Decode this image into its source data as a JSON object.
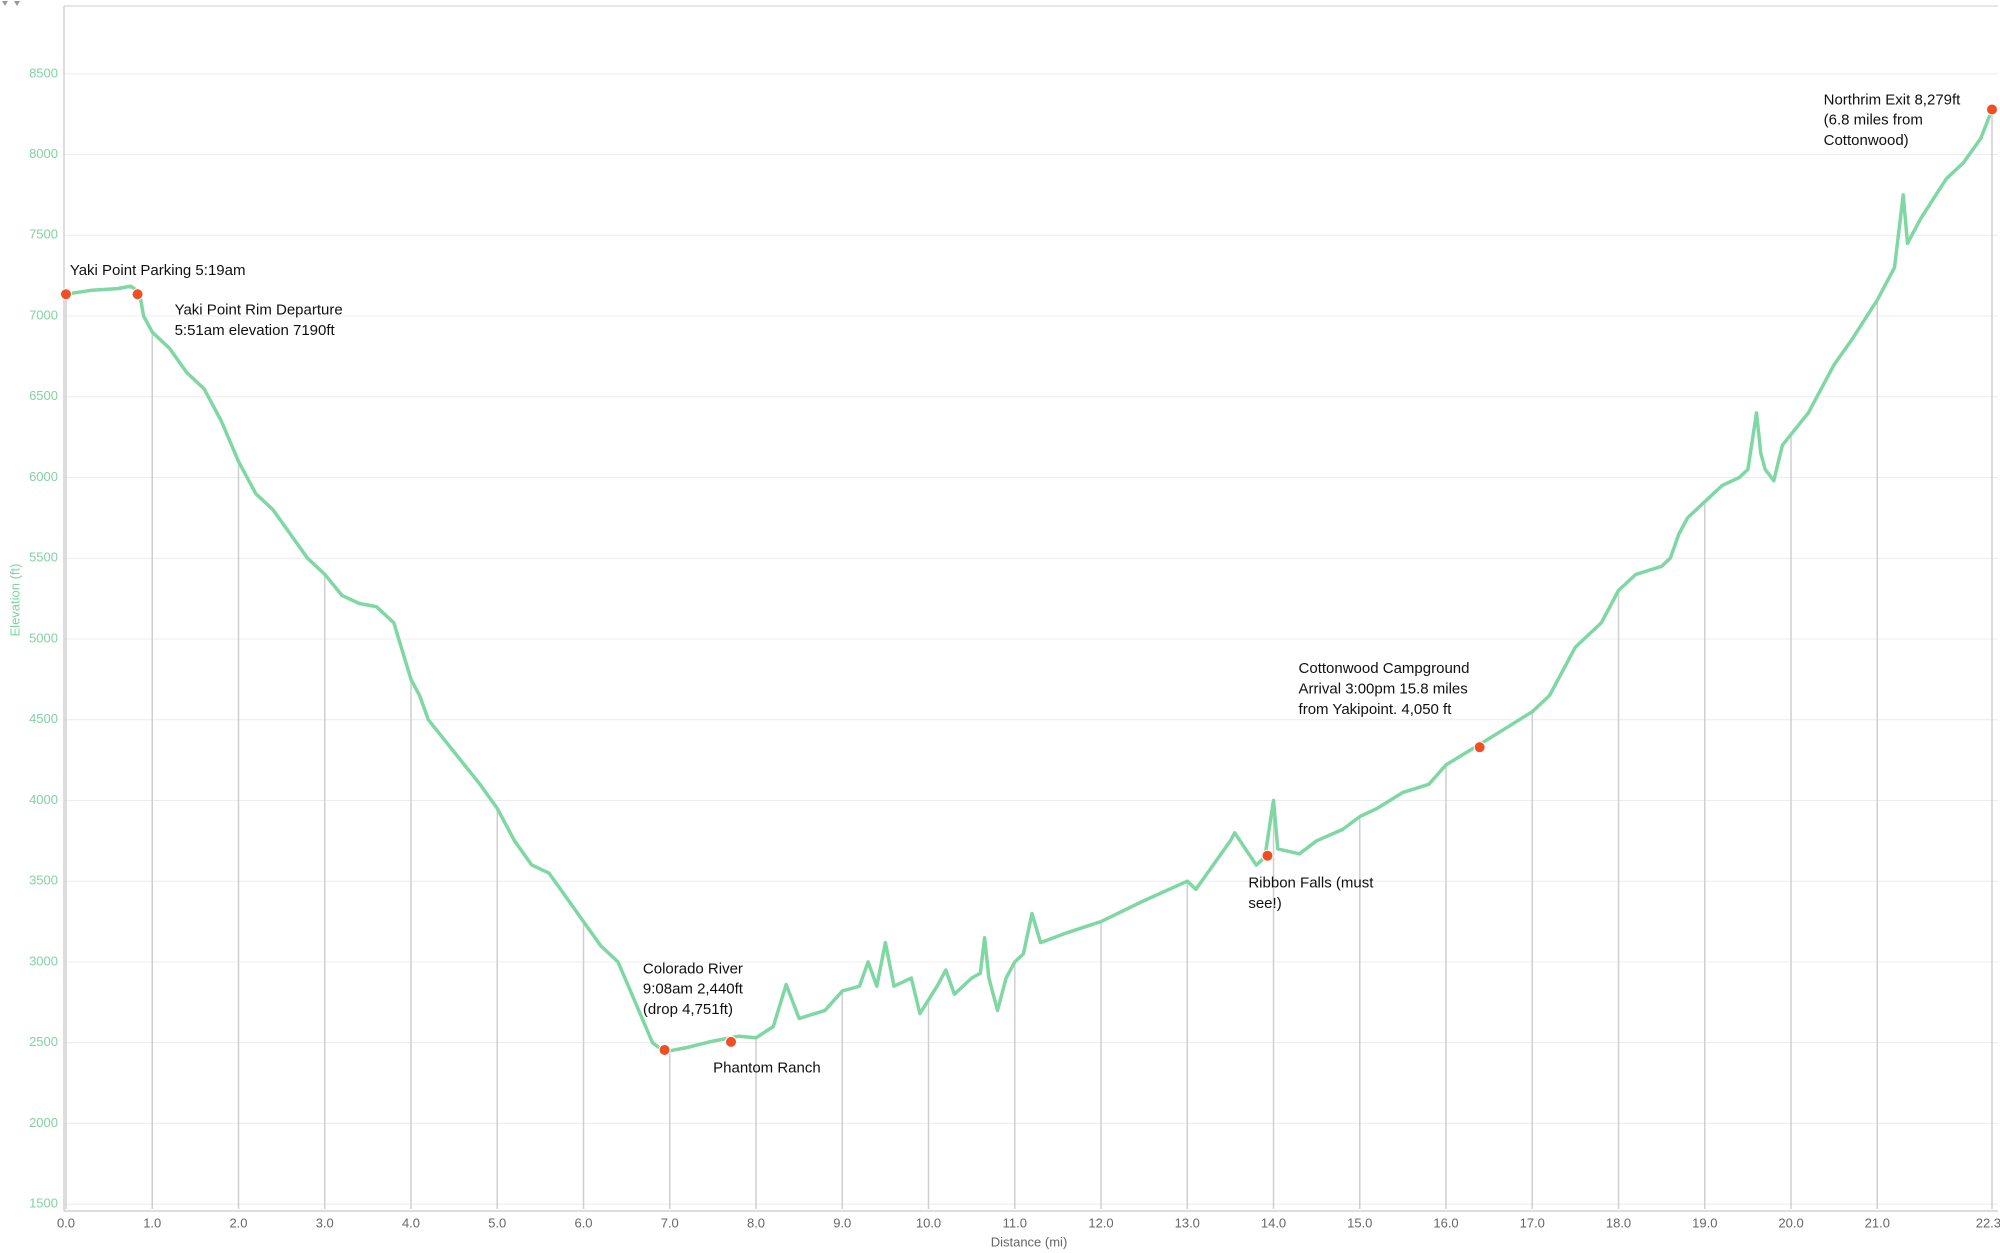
{
  "chart_data": {
    "type": "line",
    "xlabel": "Distance (mi)",
    "ylabel": "Elevation (ft)",
    "xlim": [
      0,
      22.33
    ],
    "ylim": [
      1470,
      8920
    ],
    "xticks": [
      {
        "value": 0,
        "label": "0.0"
      },
      {
        "value": 1,
        "label": "1.0"
      },
      {
        "value": 2,
        "label": "2.0"
      },
      {
        "value": 3,
        "label": "3.0"
      },
      {
        "value": 4,
        "label": "4.0"
      },
      {
        "value": 5,
        "label": "5.0"
      },
      {
        "value": 6,
        "label": "6.0"
      },
      {
        "value": 7,
        "label": "7.0"
      },
      {
        "value": 8,
        "label": "8.0"
      },
      {
        "value": 9,
        "label": "9.0"
      },
      {
        "value": 10,
        "label": "10.0"
      },
      {
        "value": 11,
        "label": "11.0"
      },
      {
        "value": 12,
        "label": "12.0"
      },
      {
        "value": 13,
        "label": "13.0"
      },
      {
        "value": 14,
        "label": "14.0"
      },
      {
        "value": 15,
        "label": "15.0"
      },
      {
        "value": 16,
        "label": "16.0"
      },
      {
        "value": 17,
        "label": "17.0"
      },
      {
        "value": 18,
        "label": "18.0"
      },
      {
        "value": 19,
        "label": "19.0"
      },
      {
        "value": 20,
        "label": "20.0"
      },
      {
        "value": 21,
        "label": "21.0"
      },
      22.33
    ],
    "yticks": [
      1500,
      2000,
      2500,
      3000,
      3500,
      4000,
      4500,
      5000,
      5500,
      6000,
      6500,
      7000,
      7500,
      8000,
      8500
    ],
    "grid": true,
    "series": [
      {
        "color": "#7fd8a3",
        "x": [
          0.0,
          0.3,
          0.6,
          0.75,
          0.85,
          0.9,
          1.0,
          1.2,
          1.4,
          1.6,
          1.8,
          2.0,
          2.2,
          2.4,
          2.6,
          2.8,
          3.0,
          3.2,
          3.4,
          3.6,
          3.8,
          4.0,
          4.1,
          4.2,
          4.5,
          4.8,
          5.0,
          5.2,
          5.4,
          5.6,
          5.8,
          6.0,
          6.2,
          6.4,
          6.6,
          6.8,
          6.9,
          7.0,
          7.2,
          7.5,
          7.8,
          8.0,
          8.2,
          8.35,
          8.5,
          8.8,
          9.0,
          9.2,
          9.3,
          9.4,
          9.5,
          9.6,
          9.8,
          9.9,
          10.1,
          10.2,
          10.3,
          10.5,
          10.6,
          10.65,
          10.7,
          10.8,
          10.9,
          11.0,
          11.1,
          11.2,
          11.3,
          11.6,
          12.0,
          12.5,
          13.0,
          13.1,
          13.3,
          13.5,
          13.55,
          13.7,
          13.8,
          13.9,
          14.0,
          14.05,
          14.3,
          14.5,
          14.8,
          15.0,
          15.2,
          15.5,
          15.8,
          16.0,
          16.4,
          16.7,
          17.0,
          17.2,
          17.5,
          17.8,
          18.0,
          18.2,
          18.5,
          18.6,
          18.7,
          18.8,
          19.0,
          19.2,
          19.4,
          19.5,
          19.6,
          19.65,
          19.7,
          19.8,
          19.9,
          20.2,
          20.5,
          20.7,
          21.0,
          21.2,
          21.3,
          21.35,
          21.5,
          21.8,
          22.0,
          22.2,
          22.33
        ],
        "values": [
          7135,
          7160,
          7170,
          7185,
          7150,
          7000,
          6900,
          6800,
          6650,
          6550,
          6350,
          6100,
          5900,
          5800,
          5650,
          5500,
          5400,
          5270,
          5220,
          5200,
          5100,
          4750,
          4650,
          4500,
          4300,
          4100,
          3950,
          3750,
          3600,
          3550,
          3400,
          3250,
          3100,
          3000,
          2750,
          2500,
          2460,
          2450,
          2470,
          2510,
          2540,
          2530,
          2600,
          2860,
          2650,
          2700,
          2820,
          2850,
          3000,
          2850,
          3120,
          2850,
          2900,
          2680,
          2850,
          2950,
          2800,
          2900,
          2930,
          3150,
          2900,
          2700,
          2900,
          3000,
          3050,
          3300,
          3120,
          3180,
          3250,
          3380,
          3500,
          3450,
          3600,
          3750,
          3800,
          3680,
          3600,
          3650,
          4000,
          3700,
          3670,
          3750,
          3820,
          3900,
          3950,
          4050,
          4100,
          4220,
          4350,
          4450,
          4550,
          4650,
          4950,
          5100,
          5300,
          5400,
          5450,
          5500,
          5650,
          5750,
          5850,
          5950,
          6000,
          6050,
          6400,
          6150,
          6050,
          5980,
          6200,
          6400,
          6700,
          6850,
          7100,
          7300,
          7750,
          7450,
          7600,
          7850,
          7950,
          8100,
          8279
        ]
      }
    ],
    "annotations": [
      {
        "x": 0.0,
        "y": 7135,
        "color": "#f04e23",
        "lines": [
          "Yaki Point Parking 5:19am"
        ]
      },
      {
        "x": 0.83,
        "y": 7135,
        "color": "#f04e23",
        "lines": [
          "Yaki Point Rim Departure",
          "5:51am elevation 7190ft"
        ]
      },
      {
        "x": 6.94,
        "y": 2455,
        "color": "#f04e23",
        "lines": [
          "Colorado River",
          "9:08am 2,440ft",
          "(drop 4,751ft)"
        ]
      },
      {
        "x": 7.71,
        "y": 2505,
        "color": "#f04e23",
        "lines": [
          "Phantom Ranch"
        ]
      },
      {
        "x": 13.93,
        "y": 3658,
        "color": "#f04e23",
        "lines": [
          "Ribbon Falls (must",
          "see!)"
        ]
      },
      {
        "x": 16.39,
        "y": 4330,
        "color": "#f04e23",
        "lines": [
          "Cottonwood Campground",
          "Arrival 3:00pm 15.8 miles",
          "from Yakipoint. 4,050 ft"
        ]
      },
      {
        "x": 22.33,
        "y": 8279,
        "color": "#f04e23",
        "lines": [
          "Northrim Exit 8,279ft",
          "(6.8 miles from",
          "Cottonwood)"
        ]
      }
    ]
  }
}
